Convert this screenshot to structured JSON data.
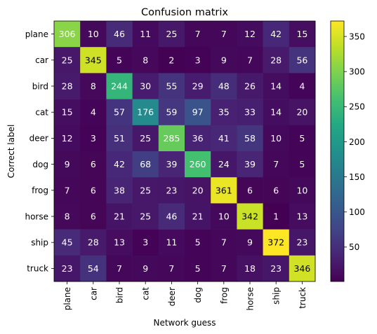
{
  "chart_data": {
    "type": "heatmap",
    "title": "Confusion matrix",
    "xlabel": "Network guess",
    "ylabel": "Correct label",
    "categories": [
      "plane",
      "car",
      "bird",
      "cat",
      "deer",
      "dog",
      "frog",
      "horse",
      "ship",
      "truck"
    ],
    "values": [
      [
        306,
        10,
        46,
        11,
        25,
        7,
        7,
        12,
        42,
        15
      ],
      [
        25,
        345,
        5,
        8,
        2,
        3,
        9,
        7,
        28,
        56
      ],
      [
        28,
        8,
        244,
        30,
        55,
        29,
        48,
        26,
        14,
        4
      ],
      [
        15,
        4,
        57,
        176,
        59,
        97,
        35,
        33,
        14,
        20
      ],
      [
        12,
        3,
        51,
        25,
        285,
        36,
        41,
        58,
        10,
        5
      ],
      [
        9,
        6,
        42,
        68,
        39,
        260,
        24,
        39,
        7,
        5
      ],
      [
        7,
        6,
        38,
        25,
        23,
        20,
        361,
        6,
        6,
        10
      ],
      [
        8,
        6,
        21,
        25,
        46,
        21,
        10,
        342,
        1,
        13
      ],
      [
        45,
        28,
        13,
        3,
        11,
        5,
        7,
        9,
        372,
        23
      ],
      [
        23,
        54,
        7,
        9,
        7,
        5,
        7,
        18,
        23,
        346
      ]
    ],
    "colormap": "viridis",
    "color_range": [
      1,
      372
    ],
    "colorbar_ticks": [
      50,
      100,
      150,
      200,
      250,
      300,
      350
    ],
    "grid": false,
    "colorbar_position": "right"
  }
}
